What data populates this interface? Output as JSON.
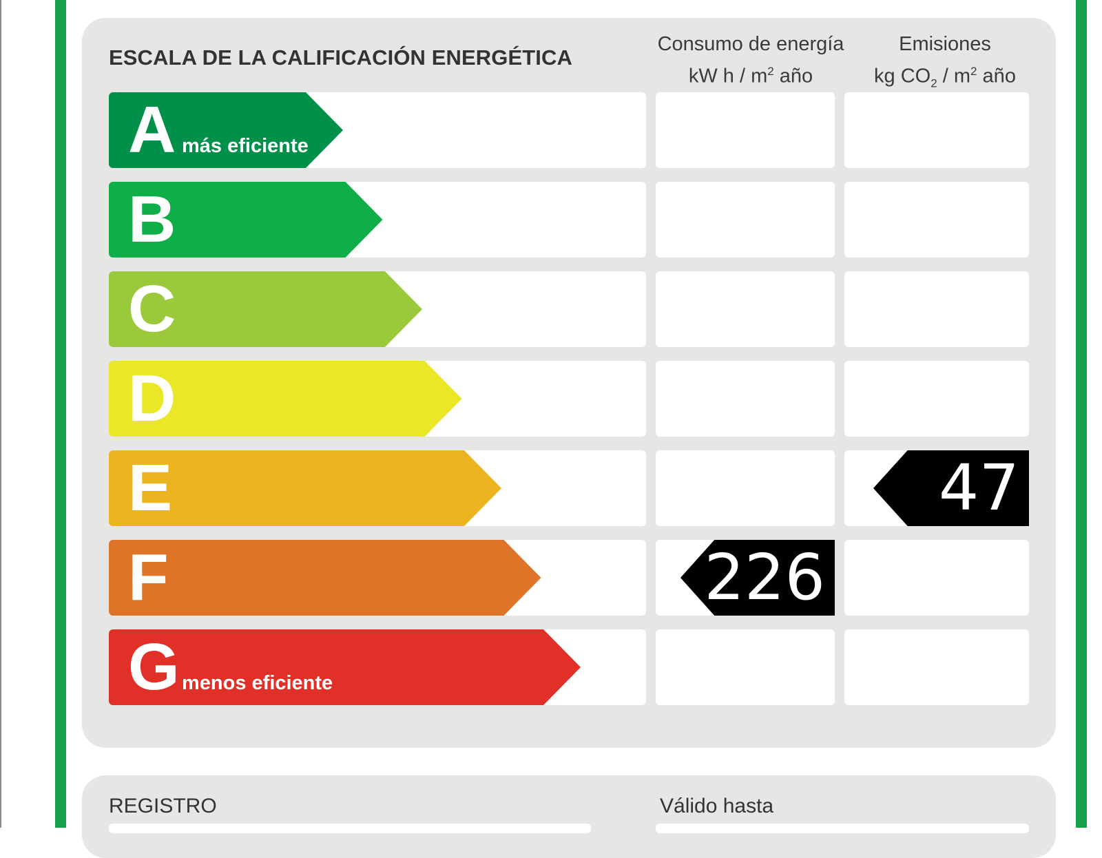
{
  "header": {
    "title": "ESCALA DE LA CALIFICACIÓN ENERGÉTICA",
    "energy_line1": "Consumo de energía",
    "energy_unit_pre": "kW h  / m",
    "energy_unit_exp": "2",
    "energy_unit_post": " año",
    "co2_line1": "Emisiones",
    "co2_unit_pre": "kg CO",
    "co2_unit_sub": "2",
    "co2_unit_mid": "  / m",
    "co2_unit_exp": "2",
    "co2_unit_post": " año"
  },
  "bands": [
    {
      "letter": "A",
      "sub": "más eficiente",
      "color": "#00904a"
    },
    {
      "letter": "B",
      "sub": "",
      "color": "#0fae48"
    },
    {
      "letter": "C",
      "sub": "",
      "color": "#9bc93c"
    },
    {
      "letter": "D",
      "sub": "",
      "color": "#e9e726"
    },
    {
      "letter": "E",
      "sub": "",
      "color": "#ecb420"
    },
    {
      "letter": "F",
      "sub": "",
      "color": "#df7429"
    },
    {
      "letter": "G",
      "sub": "menos eficiente",
      "color": "#e03028"
    }
  ],
  "rating": {
    "energy": {
      "value": "226",
      "class": "F"
    },
    "emissions": {
      "value": "47",
      "class": "E"
    }
  },
  "footer": {
    "registro_label": "REGISTRO",
    "valido_label": "Válido hasta"
  }
}
